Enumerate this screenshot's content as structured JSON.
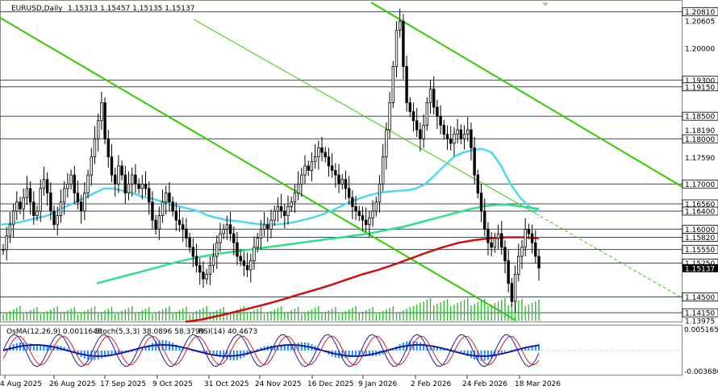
{
  "header": {
    "symbol": "EURUSD,Daily",
    "ohlc": "1.15313 1.15457 1.15135 1.15137"
  },
  "indicator_header": {
    "macd": "OsMA(12,26,9) 0.0011646",
    "stoch": "Stoch(5,3,3) 38.0896 58.3799",
    "rsi": "RSI(14) 40.4673"
  },
  "colors": {
    "candle": "#000000",
    "ma_fast": "#4dd8f0",
    "ma_mid": "#2ee08a",
    "ma_slow": "#d01010",
    "trend": "#33cc00",
    "level": "#3c4a5a",
    "current": "#000000",
    "osma": "#1e90ff",
    "macd_line": "#0a0aa0",
    "stoch_main": "#1a1ab4",
    "stoch_signal": "#d02020"
  },
  "chart_data": {
    "type": "candlestick",
    "symbol": "EURUSD",
    "timeframe": "Daily",
    "ylim": [
      1.13975,
      1.21
    ],
    "x_labels": [
      "4 Aug 2025",
      "26 Aug 2025",
      "17 Sep 2025",
      "9 Oct 2025",
      "31 Oct 2025",
      "24 Nov 2025",
      "16 Dec 2025",
      "9 Jan 2026",
      "2 Feb 2026",
      "24 Feb 2026",
      "18 Mar 2026"
    ],
    "y_ticks": [
      "1.20605",
      "1.20000",
      "1.18190",
      "1.17590",
      "1.13975"
    ],
    "levels": [
      {
        "value": "1.20810",
        "y": 1.2081
      },
      {
        "value": "1.19300",
        "y": 1.193
      },
      {
        "value": "1.19150",
        "y": 1.1915
      },
      {
        "value": "1.18500",
        "y": 1.185
      },
      {
        "value": "1.18000",
        "y": 1.18
      },
      {
        "value": "1.17000",
        "y": 1.17
      },
      {
        "value": "1.16560",
        "y": 1.1656
      },
      {
        "value": "1.16400",
        "y": 1.164
      },
      {
        "value": "1.16000",
        "y": 1.16
      },
      {
        "value": "1.15820",
        "y": 1.1582
      },
      {
        "value": "1.15550",
        "y": 1.1555
      },
      {
        "value": "1.15250",
        "y": 1.1525
      },
      {
        "value": "1.14500",
        "y": 1.145
      },
      {
        "value": "1.14150",
        "y": 1.1415
      }
    ],
    "current_price": "1.15137",
    "closes": [
      1.1555,
      1.1585,
      1.161,
      1.164,
      1.166,
      1.1645,
      1.167,
      1.169,
      1.166,
      1.163,
      1.164,
      1.169,
      1.171,
      1.168,
      1.164,
      1.161,
      1.163,
      1.166,
      1.169,
      1.17,
      1.172,
      1.168,
      1.166,
      1.164,
      1.168,
      1.172,
      1.176,
      1.18,
      1.184,
      1.188,
      1.18,
      1.176,
      1.172,
      1.17,
      1.174,
      1.172,
      1.168,
      1.17,
      1.172,
      1.17,
      1.169,
      1.17,
      1.169,
      1.166,
      1.162,
      1.16,
      1.163,
      1.166,
      1.168,
      1.166,
      1.164,
      1.162,
      1.161,
      1.16,
      1.158,
      1.156,
      1.154,
      1.152,
      1.1505,
      1.149,
      1.15,
      1.152,
      1.154,
      1.157,
      1.159,
      1.16,
      1.161,
      1.159,
      1.157,
      1.154,
      1.153,
      1.152,
      1.151,
      1.153,
      1.156,
      1.158,
      1.16,
      1.161,
      1.16,
      1.162,
      1.164,
      1.165,
      1.164,
      1.163,
      1.165,
      1.166,
      1.168,
      1.17,
      1.172,
      1.174,
      1.173,
      1.175,
      1.176,
      1.178,
      1.177,
      1.176,
      1.174,
      1.173,
      1.172,
      1.17,
      1.171,
      1.169,
      1.167,
      1.165,
      1.164,
      1.163,
      1.162,
      1.161,
      1.1625,
      1.164,
      1.166,
      1.17,
      1.176,
      1.182,
      1.188,
      1.196,
      1.204,
      1.206,
      1.196,
      1.188,
      1.186,
      1.184,
      1.182,
      1.18,
      1.183,
      1.188,
      1.191,
      1.187,
      1.185,
      1.183,
      1.181,
      1.18,
      1.179,
      1.181,
      1.182,
      1.18,
      1.181,
      1.182,
      1.178,
      1.172,
      1.168,
      1.164,
      1.16,
      1.157,
      1.156,
      1.158,
      1.159,
      1.156,
      1.153,
      1.148,
      1.144,
      1.15,
      1.154,
      1.156,
      1.16,
      1.159,
      1.157,
      1.154,
      1.1514
    ],
    "series": [
      {
        "name": "MA fast",
        "values": [
          1.161,
          1.1612,
          1.1615,
          1.162,
          1.1625,
          1.163,
          1.164,
          1.165,
          1.166,
          1.167,
          1.168,
          1.169,
          1.169,
          1.1685,
          1.168,
          1.1672,
          1.1668,
          1.1662,
          1.1655,
          1.165,
          1.1645,
          1.164,
          1.163,
          1.1625,
          1.162,
          1.1618,
          1.1615,
          1.1612,
          1.161,
          1.161,
          1.1612,
          1.1615,
          1.162,
          1.1625,
          1.1632,
          1.164,
          1.165,
          1.166,
          1.1668,
          1.1675,
          1.168,
          1.1683,
          1.1685,
          1.1686,
          1.169,
          1.17,
          1.172,
          1.174,
          1.176,
          1.177,
          1.1775,
          1.1778,
          1.177,
          1.174,
          1.17,
          1.167,
          1.165,
          1.164
        ]
      },
      {
        "name": "MA mid",
        "values": [
          1.148,
          1.149,
          1.15,
          1.151,
          1.152,
          1.153,
          1.1538,
          1.1545,
          1.155,
          1.1555,
          1.156,
          1.1565,
          1.157,
          1.1575,
          1.158,
          1.1585,
          1.159,
          1.1598,
          1.1605,
          1.1615,
          1.1625,
          1.1635,
          1.1645,
          1.1652,
          1.1655,
          1.165,
          1.1645
        ]
      },
      {
        "name": "MA slow",
        "values": [
          1.1395,
          1.14,
          1.1408,
          1.1416,
          1.1425,
          1.1434,
          1.1444,
          1.1455,
          1.1465,
          1.1476,
          1.1488,
          1.15,
          1.151,
          1.1522,
          1.1535,
          1.1548,
          1.156,
          1.157,
          1.1576,
          1.158,
          1.1582,
          1.1582,
          1.158
        ]
      }
    ]
  }
}
